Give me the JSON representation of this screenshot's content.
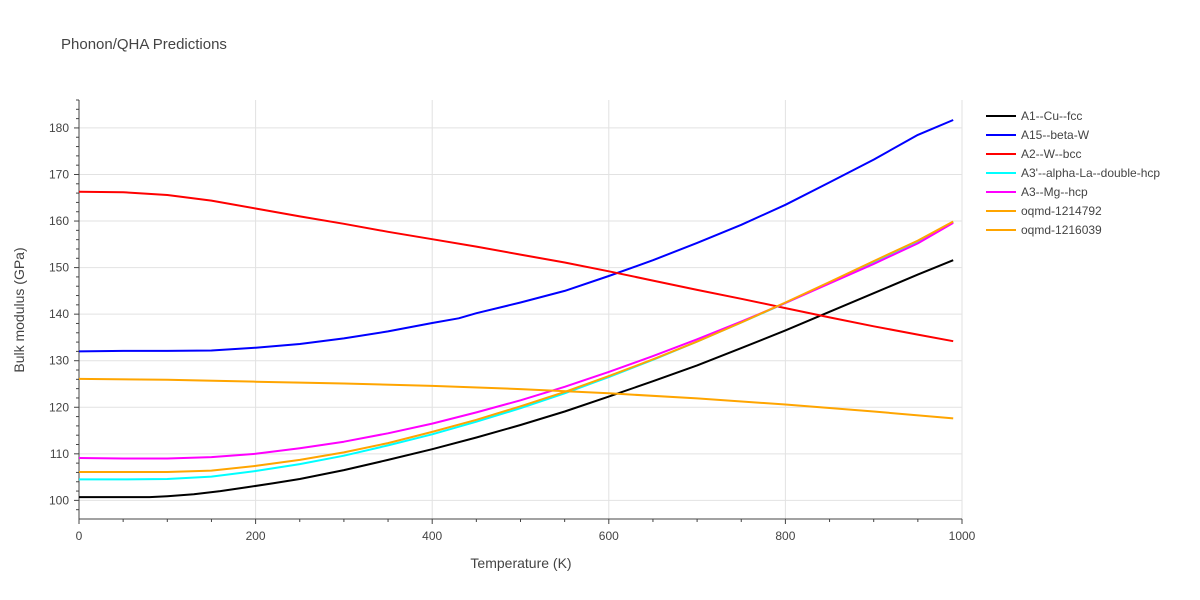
{
  "chart_data": {
    "type": "line",
    "title": "Phonon/QHA Predictions",
    "xlabel": "Temperature (K)",
    "ylabel": "Bulk modulus (GPa)",
    "xlim": [
      0,
      1000
    ],
    "ylim": [
      96,
      186
    ],
    "xticks": [
      0,
      200,
      400,
      600,
      800,
      1000
    ],
    "yticks": [
      100,
      110,
      120,
      130,
      140,
      150,
      160,
      170,
      180
    ],
    "grid": true,
    "legend_position": "right",
    "series": [
      {
        "name": "A1--Cu--fcc",
        "color": "#000000",
        "x": [
          0,
          40,
          80,
          100,
          130,
          160,
          190,
          220,
          250,
          300,
          350,
          400,
          450,
          500,
          550,
          600,
          650,
          700,
          750,
          800,
          850,
          900,
          950,
          990
        ],
        "y": [
          100.7,
          100.7,
          100.7,
          100.9,
          101.3,
          102.0,
          102.8,
          103.7,
          104.6,
          106.5,
          108.7,
          111.0,
          113.5,
          116.2,
          119.1,
          122.3,
          125.6,
          129.0,
          132.7,
          136.5,
          140.5,
          144.5,
          148.5,
          151.6
        ]
      },
      {
        "name": "A15--beta-W",
        "color": "#0000ff",
        "x": [
          0,
          50,
          100,
          150,
          200,
          250,
          300,
          350,
          400,
          430,
          450,
          500,
          550,
          600,
          650,
          700,
          750,
          800,
          850,
          900,
          950,
          990
        ],
        "y": [
          132.0,
          132.1,
          132.1,
          132.2,
          132.8,
          133.6,
          134.8,
          136.3,
          138.1,
          139.1,
          140.2,
          142.5,
          145.0,
          148.2,
          151.6,
          155.3,
          159.2,
          163.5,
          168.3,
          173.2,
          178.5,
          181.7
        ]
      },
      {
        "name": "A2--W--bcc",
        "color": "#ff0000",
        "x": [
          0,
          50,
          100,
          150,
          200,
          250,
          300,
          350,
          400,
          450,
          500,
          550,
          600,
          650,
          700,
          750,
          800,
          850,
          900,
          950,
          990
        ],
        "y": [
          166.3,
          166.2,
          165.6,
          164.4,
          162.7,
          161.0,
          159.4,
          157.7,
          156.1,
          154.5,
          152.8,
          151.1,
          149.2,
          147.2,
          145.2,
          143.3,
          141.3,
          139.3,
          137.4,
          135.6,
          134.2
        ]
      },
      {
        "name": "A3'--alpha-La--double-hcp",
        "color": "#00ffff",
        "x": [
          0,
          50,
          100,
          150,
          200,
          250,
          300,
          350,
          400,
          450,
          500,
          550,
          600,
          650,
          700,
          750,
          800,
          850,
          900,
          950,
          990
        ],
        "y": [
          104.5,
          104.5,
          104.6,
          105.1,
          106.3,
          107.8,
          109.6,
          111.8,
          114.2,
          116.9,
          119.8,
          123.0,
          126.5,
          130.2,
          134.1,
          138.2,
          142.4,
          146.7,
          151.1,
          155.5,
          159.8
        ]
      },
      {
        "name": "A3--Mg--hcp",
        "color": "#ff00ff",
        "x": [
          0,
          50,
          100,
          150,
          200,
          250,
          300,
          350,
          400,
          450,
          500,
          550,
          600,
          650,
          700,
          750,
          800,
          850,
          900,
          950,
          990
        ],
        "y": [
          109.1,
          109.0,
          109.0,
          109.3,
          110.0,
          111.2,
          112.6,
          114.4,
          116.5,
          118.9,
          121.5,
          124.4,
          127.6,
          131.0,
          134.6,
          138.4,
          142.4,
          146.6,
          150.8,
          155.2,
          159.6
        ]
      },
      {
        "name": "oqmd-1214792",
        "color": "#ffa500",
        "x": [
          0,
          100,
          200,
          300,
          400,
          500,
          600,
          700,
          800,
          900,
          990
        ],
        "y": [
          126.1,
          125.9,
          125.5,
          125.1,
          124.6,
          123.9,
          123.0,
          121.9,
          120.6,
          119.1,
          117.6
        ]
      },
      {
        "name": "oqmd-1216039",
        "color": "#ffa500",
        "x": [
          0,
          50,
          100,
          150,
          200,
          250,
          300,
          350,
          400,
          450,
          500,
          550,
          600,
          650,
          700,
          750,
          800,
          850,
          900,
          950,
          990
        ],
        "y": [
          106.1,
          106.1,
          106.1,
          106.4,
          107.4,
          108.7,
          110.3,
          112.3,
          114.7,
          117.3,
          120.2,
          123.3,
          126.7,
          130.3,
          134.1,
          138.2,
          142.5,
          146.9,
          151.4,
          155.8,
          159.9
        ]
      }
    ]
  }
}
